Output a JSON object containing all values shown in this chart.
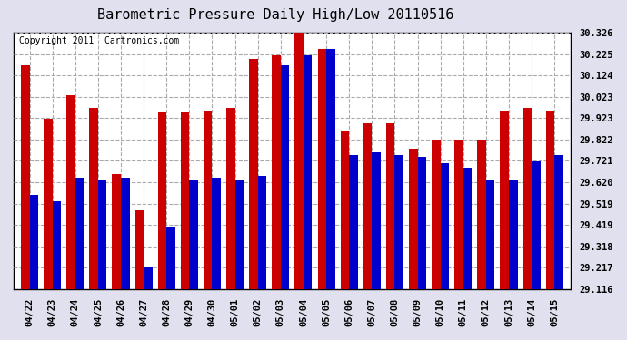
{
  "title": "Barometric Pressure Daily High/Low 20110516",
  "copyright": "Copyright 2011  Cartronics.com",
  "dates": [
    "04/22",
    "04/23",
    "04/24",
    "04/25",
    "04/26",
    "04/27",
    "04/28",
    "04/29",
    "04/30",
    "05/01",
    "05/02",
    "05/03",
    "05/04",
    "05/05",
    "05/06",
    "05/07",
    "05/08",
    "05/09",
    "05/10",
    "05/11",
    "05/12",
    "05/13",
    "05/14",
    "05/15"
  ],
  "highs": [
    30.17,
    29.92,
    30.03,
    29.97,
    29.66,
    29.49,
    29.95,
    29.95,
    29.96,
    29.97,
    30.2,
    30.22,
    30.37,
    30.25,
    29.86,
    29.9,
    29.9,
    29.78,
    29.82,
    29.82,
    29.82,
    29.96,
    29.97,
    29.96
  ],
  "lows": [
    29.56,
    29.53,
    29.64,
    29.63,
    29.64,
    29.22,
    29.41,
    29.63,
    29.64,
    29.63,
    29.65,
    30.17,
    30.22,
    30.25,
    29.75,
    29.76,
    29.75,
    29.74,
    29.71,
    29.69,
    29.63,
    29.63,
    29.72,
    29.75
  ],
  "high_color": "#cc0000",
  "low_color": "#0000cc",
  "bg_color": "#e0e0ee",
  "plot_bg_color": "#ffffff",
  "title_color": "#000000",
  "copyright_color": "#000000",
  "grid_color": "#aaaaaa",
  "ymin": 29.116,
  "ymax": 30.326,
  "yticks": [
    29.116,
    29.217,
    29.318,
    29.419,
    29.519,
    29.62,
    29.721,
    29.822,
    29.923,
    30.023,
    30.124,
    30.225,
    30.326
  ],
  "title_fontsize": 11,
  "tick_fontsize": 7.5,
  "copyright_fontsize": 7
}
